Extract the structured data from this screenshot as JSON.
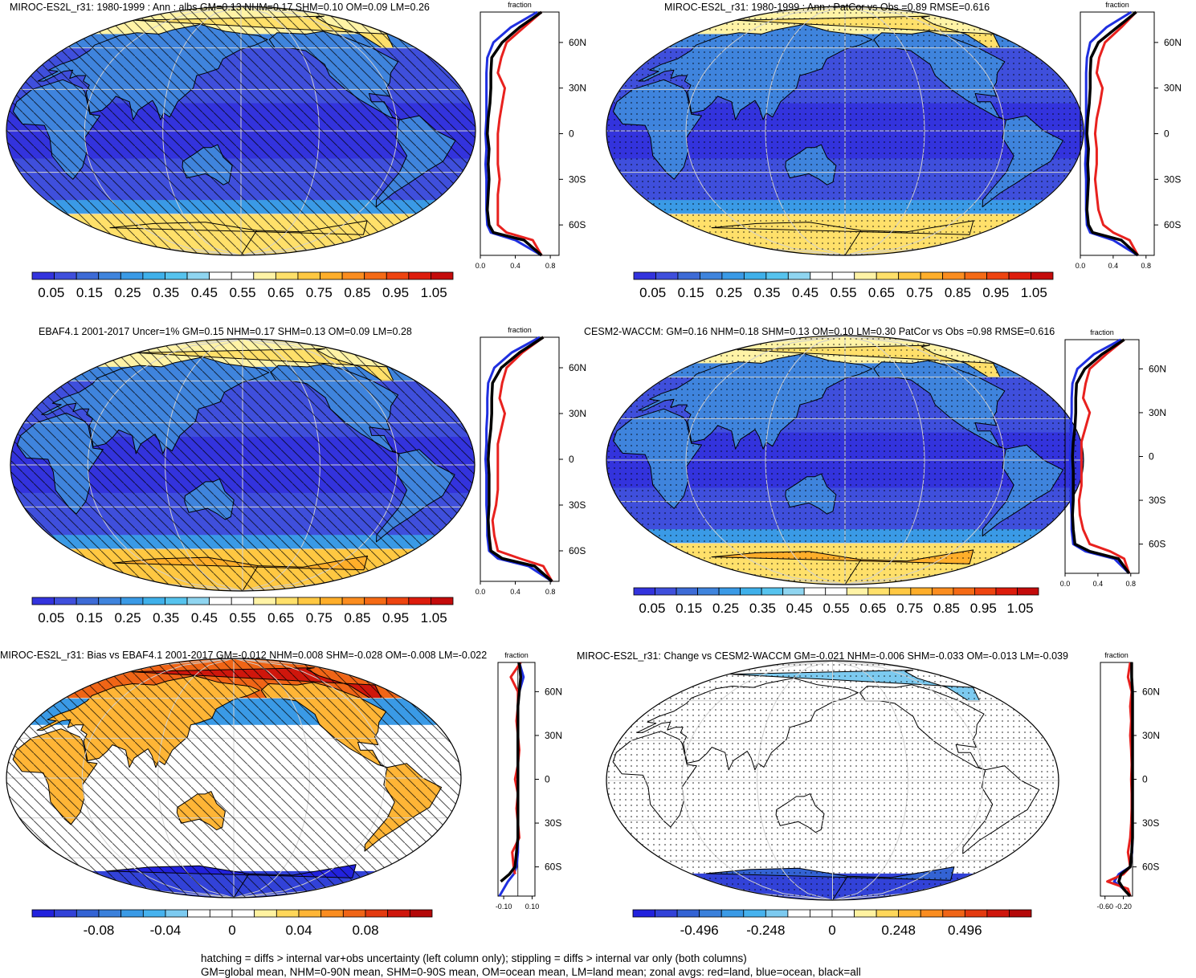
{
  "palettes": {
    "seq": [
      "#3333dd",
      "#3f4fdc",
      "#3d6bd6",
      "#3f84dd",
      "#3a9ae6",
      "#3fb0ea",
      "#56c3ee",
      "#8fd5f0",
      "#ffffff",
      "#ffffff",
      "#fff3a6",
      "#ffe06a",
      "#ffc842",
      "#ffae2a",
      "#fb8d1f",
      "#f56a15",
      "#ee4410",
      "#dd1c0c",
      "#c40b0b"
    ],
    "div": [
      "#2222dd",
      "#3242d8",
      "#3363d4",
      "#3a80db",
      "#3a9ae6",
      "#46b2ee",
      "#7ccaf0",
      "#ffffff",
      "#ffffff",
      "#ffffff",
      "#fff2a0",
      "#ffd75a",
      "#ffb536",
      "#fa8d20",
      "#f06516",
      "#e33a0f",
      "#cf160c",
      "#b40909"
    ],
    "land": "#e8211e",
    "ocean": "#1f2fe0",
    "all": "#000000",
    "grid": "#cfcfcf"
  },
  "footer": {
    "line1": "hatching = diffs > internal var+obs uncertainty (left column only); stippling = diffs > internal var only (both columns)",
    "line2": "GM=global mean, NHM=0-90N mean, SHM=0-90S mean, OM=ocean mean, LM=land mean; zonal avgs: red=land, blue=ocean, black=all"
  },
  "chart_data": [
    {
      "type": "heatmap",
      "title": "MIROC-ES2L_r31: 1980-1999 : Ann : albs GM=0.13 NHM=0.17 SHM=0.10 OM=0.09 LM=0.26",
      "field": "albedo",
      "pattern": "hatch",
      "colorbar": {
        "palette": "seq",
        "labels": [
          "0.05",
          "0.15",
          "0.25",
          "0.35",
          "0.45",
          "0.55",
          "0.65",
          "0.75",
          "0.85",
          "0.95",
          "1.05"
        ]
      },
      "zonal": {
        "title": "fraction",
        "xlim": [
          0,
          0.9
        ],
        "xticks": [
          "0.0",
          "0.4",
          "0.8"
        ],
        "lat_labels": [
          "60N",
          "30N",
          "0",
          "30S",
          "60S"
        ],
        "lat": [
          -80,
          -70,
          -65,
          -60,
          -50,
          -40,
          -30,
          -20,
          -10,
          0,
          10,
          20,
          30,
          40,
          50,
          60,
          70,
          80
        ],
        "land": [
          0.7,
          0.6,
          0.3,
          0.2,
          0.2,
          0.2,
          0.22,
          0.2,
          0.2,
          0.2,
          0.22,
          0.25,
          0.28,
          0.2,
          0.24,
          0.3,
          0.5,
          0.7
        ],
        "ocean": [
          0.7,
          0.4,
          0.12,
          0.08,
          0.07,
          0.07,
          0.07,
          0.06,
          0.07,
          0.06,
          0.07,
          0.07,
          0.07,
          0.07,
          0.08,
          0.15,
          0.35,
          0.65
        ],
        "all": [
          0.7,
          0.5,
          0.15,
          0.1,
          0.08,
          0.09,
          0.1,
          0.09,
          0.1,
          0.08,
          0.09,
          0.11,
          0.12,
          0.12,
          0.13,
          0.25,
          0.45,
          0.7
        ]
      }
    },
    {
      "type": "heatmap",
      "title": "MIROC-ES2L_r31: 1980-1999 : Ann : PatCor vs Obs =0.89 RMSE=0.616",
      "field": "albedo",
      "pattern": "stipple",
      "colorbar": {
        "palette": "seq",
        "labels": [
          "0.05",
          "0.15",
          "0.25",
          "0.35",
          "0.45",
          "0.55",
          "0.65",
          "0.75",
          "0.85",
          "0.95",
          "1.05"
        ]
      },
      "zonal": {
        "title": "fraction",
        "xlim": [
          0,
          0.9
        ],
        "xticks": [
          "0.0",
          "0.4",
          "0.8"
        ],
        "lat_labels": [
          "60N",
          "30N",
          "0",
          "30S",
          "60S"
        ],
        "lat": [
          -80,
          -70,
          -65,
          -60,
          -50,
          -40,
          -30,
          -20,
          -10,
          0,
          10,
          20,
          30,
          40,
          50,
          60,
          70,
          80
        ],
        "land": [
          0.7,
          0.6,
          0.4,
          0.28,
          0.22,
          0.2,
          0.18,
          0.2,
          0.2,
          0.18,
          0.2,
          0.24,
          0.27,
          0.2,
          0.23,
          0.3,
          0.5,
          0.68
        ],
        "ocean": [
          0.7,
          0.4,
          0.12,
          0.08,
          0.07,
          0.07,
          0.07,
          0.06,
          0.07,
          0.06,
          0.07,
          0.07,
          0.07,
          0.07,
          0.08,
          0.12,
          0.32,
          0.62
        ],
        "all": [
          0.7,
          0.5,
          0.15,
          0.1,
          0.08,
          0.09,
          0.1,
          0.09,
          0.1,
          0.08,
          0.09,
          0.11,
          0.12,
          0.12,
          0.13,
          0.22,
          0.45,
          0.68
        ]
      }
    },
    {
      "type": "heatmap",
      "title": "EBAF4.1 2001-2017 Uncer=1% GM=0.15 NHM=0.17 SHM=0.13 OM=0.09 LM=0.28",
      "field": "albedo",
      "pattern": "hatch",
      "colorbar": {
        "palette": "seq",
        "labels": [
          "0.05",
          "0.15",
          "0.25",
          "0.35",
          "0.45",
          "0.55",
          "0.65",
          "0.75",
          "0.85",
          "0.95",
          "1.05"
        ]
      },
      "zonal": {
        "title": "fraction",
        "xlim": [
          0,
          0.9
        ],
        "xticks": [
          "0.0",
          "0.4",
          "0.8"
        ],
        "lat_labels": [
          "60N",
          "30N",
          "0",
          "30S",
          "60S"
        ],
        "lat": [
          -80,
          -70,
          -65,
          -60,
          -50,
          -40,
          -30,
          -20,
          -10,
          0,
          10,
          20,
          30,
          40,
          50,
          60,
          70,
          80
        ],
        "land": [
          0.82,
          0.72,
          0.45,
          0.2,
          0.16,
          0.14,
          0.18,
          0.2,
          0.2,
          0.2,
          0.2,
          0.24,
          0.28,
          0.22,
          0.25,
          0.3,
          0.48,
          0.72
        ],
        "ocean": [
          0.82,
          0.55,
          0.2,
          0.1,
          0.08,
          0.08,
          0.07,
          0.07,
          0.07,
          0.06,
          0.07,
          0.07,
          0.08,
          0.08,
          0.09,
          0.16,
          0.36,
          0.68
        ],
        "all": [
          0.82,
          0.62,
          0.25,
          0.12,
          0.1,
          0.09,
          0.1,
          0.1,
          0.1,
          0.09,
          0.1,
          0.12,
          0.13,
          0.13,
          0.14,
          0.24,
          0.45,
          0.72
        ]
      }
    },
    {
      "type": "heatmap",
      "title": "CESM2-WACCM: GM=0.16 NHM=0.18 SHM=0.13 OM=0.10 LM=0.30 PatCor vs Obs =0.98 RMSE=0.616",
      "field": "albedo",
      "pattern": "stipple",
      "colorbar": {
        "palette": "seq",
        "labels": [
          "0.05",
          "0.15",
          "0.25",
          "0.35",
          "0.45",
          "0.55",
          "0.65",
          "0.75",
          "0.85",
          "0.95",
          "1.05"
        ]
      },
      "zonal": {
        "title": "fraction",
        "xlim": [
          0,
          0.9
        ],
        "xticks": [
          "0.0",
          "0.4",
          "0.8"
        ],
        "lat_labels": [
          "60N",
          "30N",
          "0",
          "30S",
          "60S"
        ],
        "lat": [
          -80,
          -70,
          -65,
          -60,
          -50,
          -40,
          -30,
          -20,
          -10,
          0,
          10,
          20,
          30,
          40,
          50,
          60,
          70,
          80
        ],
        "land": [
          0.78,
          0.72,
          0.55,
          0.3,
          0.22,
          0.18,
          0.17,
          0.2,
          0.2,
          0.2,
          0.2,
          0.25,
          0.3,
          0.22,
          0.25,
          0.3,
          0.5,
          0.72
        ],
        "ocean": [
          0.78,
          0.6,
          0.25,
          0.1,
          0.08,
          0.08,
          0.07,
          0.07,
          0.07,
          0.06,
          0.07,
          0.07,
          0.08,
          0.08,
          0.09,
          0.15,
          0.35,
          0.68
        ],
        "all": [
          0.78,
          0.65,
          0.3,
          0.12,
          0.1,
          0.09,
          0.1,
          0.1,
          0.1,
          0.09,
          0.1,
          0.12,
          0.13,
          0.13,
          0.14,
          0.24,
          0.45,
          0.72
        ]
      }
    },
    {
      "type": "heatmap",
      "title": "MIROC-ES2L_r31: Bias vs EBAF4.1 2001-2017 GM=-0.012 NHM=0.008 SHM=-0.028 OM=-0.008 LM=-0.022",
      "field": "bias",
      "pattern": "hatch",
      "colorbar": {
        "palette": "div",
        "labels": [
          "-0.08",
          "-0.04",
          "0",
          "0.04",
          "0.08"
        ]
      },
      "zonal": {
        "title": "fraction",
        "xlim": [
          -0.14,
          0.12
        ],
        "xticks": [
          "-0.10",
          "0.10"
        ],
        "lat_labels": [
          "60N",
          "30N",
          "0",
          "30S",
          "60S"
        ],
        "lat": [
          -80,
          -75,
          -70,
          -65,
          -60,
          -50,
          -40,
          -30,
          -20,
          -10,
          0,
          10,
          20,
          30,
          40,
          50,
          60,
          70,
          80
        ],
        "land": [
          -0.13,
          null,
          null,
          -0.02,
          -0.03,
          -0.04,
          0.01,
          0.0,
          -0.01,
          0.0,
          -0.02,
          0.0,
          0.01,
          0.0,
          -0.01,
          0.0,
          0.0,
          -0.05,
          0.02
        ],
        "ocean": [
          -0.13,
          -0.1,
          -0.07,
          -0.03,
          -0.01,
          0.0,
          0.0,
          0.0,
          0.0,
          0.0,
          0.0,
          0.0,
          0.0,
          0.0,
          0.0,
          0.0,
          0.01,
          0.04,
          0.01
        ],
        "all": [
          null,
          null,
          -0.12,
          -0.06,
          -0.02,
          -0.01,
          0.0,
          0.0,
          0.0,
          0.0,
          0.0,
          0.0,
          0.0,
          0.0,
          0.0,
          0.0,
          0.01,
          0.02,
          0.01
        ]
      }
    },
    {
      "type": "heatmap",
      "title": "MIROC-ES2L_r31: Change vs CESM2-WACCM GM=-0.021 NHM=-0.006 SHM=-0.033 OM=-0.013 LM=-0.039",
      "field": "change",
      "pattern": "stipple",
      "colorbar": {
        "palette": "div",
        "labels": [
          "-0.496",
          "-0.248",
          "0",
          "0.248",
          "0.496"
        ]
      },
      "zonal": {
        "title": "fraction",
        "xlim": [
          -0.7,
          0.0
        ],
        "xticks": [
          "-0.60",
          "-0.20"
        ],
        "lat_labels": [
          "60N",
          "30N",
          "0",
          "30S",
          "60S"
        ],
        "lat": [
          -80,
          -75,
          -70,
          -65,
          -60,
          -50,
          -40,
          -30,
          -20,
          -10,
          0,
          10,
          20,
          30,
          40,
          50,
          60,
          70,
          80
        ],
        "land": [
          -0.05,
          -0.1,
          -0.55,
          -0.2,
          -0.05,
          -0.1,
          -0.05,
          -0.03,
          -0.02,
          -0.02,
          -0.03,
          -0.02,
          -0.03,
          -0.05,
          -0.03,
          -0.05,
          -0.02,
          -0.1,
          -0.05
        ],
        "ocean": [
          -0.05,
          -0.2,
          -0.4,
          -0.3,
          -0.05,
          -0.01,
          0.0,
          0.0,
          0.0,
          0.0,
          0.0,
          0.0,
          0.0,
          0.0,
          0.0,
          0.0,
          0.0,
          -0.02,
          -0.02
        ],
        "all": [
          -0.05,
          -0.2,
          -0.3,
          -0.25,
          -0.05,
          -0.02,
          0.0,
          0.0,
          0.0,
          0.0,
          0.0,
          0.0,
          0.0,
          0.0,
          0.0,
          0.0,
          0.0,
          -0.02,
          -0.02
        ]
      }
    }
  ]
}
